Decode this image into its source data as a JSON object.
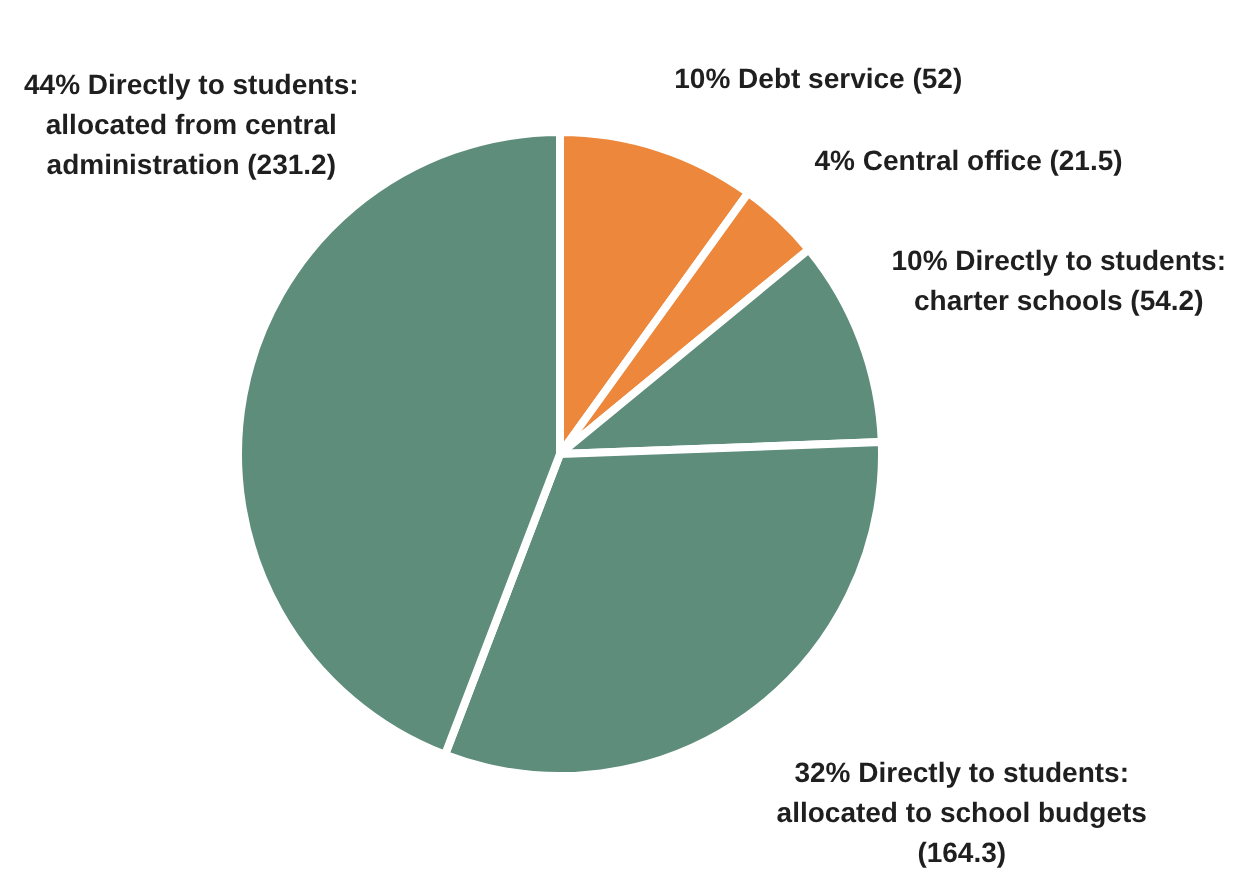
{
  "chart_data": {
    "type": "pie",
    "categories": [
      "10% Debt service (52)",
      "4% Central office (21.5)",
      "10% Directly to students: charter schools (54.2)",
      "32% Directly to students: allocated to school budgets (164.3)",
      "44% Directly to students: allocated from central administration (231.2)"
    ],
    "values": [
      52,
      21.5,
      54.2,
      164.3,
      231.2
    ],
    "colors": [
      "#ec873b",
      "#ec873b",
      "#5f8d7b",
      "#5f8d7b",
      "#5f8d7b"
    ],
    "legend": false
  }
}
